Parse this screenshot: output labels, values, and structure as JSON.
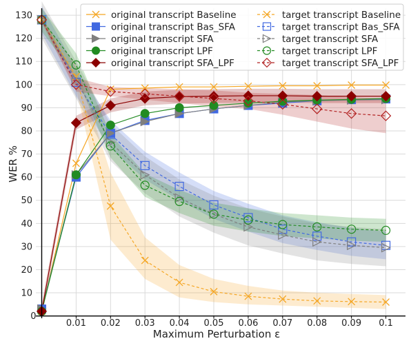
{
  "chart_data": {
    "type": "line",
    "title": "",
    "xlabel": "Maximum Perturbation ε",
    "ylabel": "WER %",
    "xlim": [
      -0.0017,
      0.1057
    ],
    "ylim": [
      -1,
      133
    ],
    "x_ticks": [
      0.01,
      0.02,
      0.03,
      0.04,
      0.05,
      0.06,
      0.07,
      0.08,
      0.09,
      0.1
    ],
    "x_tick_labels": [
      "0.01",
      "0.02",
      "0.03",
      "0.04",
      "0.05",
      "0.06",
      "0.07",
      "0.08",
      "0.09",
      "0.1"
    ],
    "x_origin_label": "0",
    "y_ticks": [
      0,
      10,
      20,
      30,
      40,
      50,
      60,
      70,
      80,
      90,
      100,
      110,
      120,
      130
    ],
    "y_tick_labels": [
      "0",
      "10",
      "20",
      "30",
      "40",
      "50",
      "60",
      "70",
      "80",
      "90",
      "100",
      "110",
      "120",
      "130"
    ],
    "grid": true,
    "legend_position": "top-right, two columns",
    "x": [
      0,
      0.01,
      0.02,
      0.03,
      0.04,
      0.05,
      0.06,
      0.07,
      0.08,
      0.09,
      0.1
    ],
    "series": [
      {
        "name": "original transcript Baseline",
        "color": "#f5a623",
        "marker": "x",
        "dashed": false,
        "values": [
          2,
          66,
          98,
          98.5,
          99,
          99,
          99.3,
          99.5,
          99.5,
          99.8,
          99.8
        ],
        "band": 0
      },
      {
        "name": "original transcript Bas_SFA",
        "color": "#4169e1",
        "marker": "square",
        "dashed": false,
        "values": [
          3,
          60,
          79,
          84.5,
          87.5,
          89.5,
          91,
          92,
          93,
          93.5,
          93.8
        ],
        "band": 0
      },
      {
        "name": "original transcript SFA",
        "color": "#7f7f7f",
        "marker": "triangle-right",
        "dashed": false,
        "values": [
          3,
          61,
          79,
          84,
          87.5,
          89.5,
          91,
          92.5,
          93,
          93.3,
          93.5
        ],
        "band": 0
      },
      {
        "name": "original transcript LPF",
        "color": "#228b22",
        "marker": "circle",
        "dashed": false,
        "values": [
          2,
          61,
          82.5,
          87.5,
          90,
          91,
          92,
          92.8,
          93.3,
          93.6,
          94
        ],
        "band": 0
      },
      {
        "name": "original transcript SFA_LPF",
        "color": "#8b0000",
        "marker": "diamond",
        "dashed": false,
        "values": [
          2,
          83.5,
          91,
          94,
          94.8,
          95,
          95.2,
          95.2,
          95,
          95,
          95
        ],
        "band": 3
      },
      {
        "name": "target transcript Baseline",
        "color": "#f5a623",
        "marker": "x",
        "dashed": true,
        "values": [
          128,
          103.5,
          47.5,
          24,
          14.5,
          10.5,
          8.5,
          7.3,
          6.5,
          6.2,
          6
        ],
        "band_upper": [
          129,
          108,
          62,
          34,
          22,
          16,
          13,
          11,
          10,
          9.5,
          9
        ],
        "band_lower": [
          127,
          98,
          33,
          16,
          8,
          6,
          5,
          4.5,
          4,
          3.5,
          3
        ]
      },
      {
        "name": "target transcript Bas_SFA",
        "color": "#4169e1",
        "marker": "square-open",
        "dashed": true,
        "values": [
          128,
          101,
          78.5,
          65,
          56,
          48,
          42.5,
          37.5,
          34.5,
          32,
          30.5
        ],
        "band": 6
      },
      {
        "name": "target transcript SFA",
        "color": "#7f7f7f",
        "marker": "triangle-right-open",
        "dashed": true,
        "values": [
          128,
          102,
          75,
          61,
          51,
          44,
          38.5,
          35,
          32,
          30.5,
          29.5
        ],
        "band": 8
      },
      {
        "name": "target transcript LPF",
        "color": "#228b22",
        "marker": "circle-open",
        "dashed": true,
        "values": [
          128,
          108.5,
          73.5,
          56.5,
          49.5,
          44,
          41.5,
          39.5,
          38.5,
          37.5,
          37
        ],
        "band": 5
      },
      {
        "name": "target transcript SFA_LPF",
        "color": "#b22222",
        "marker": "diamond-open",
        "dashed": true,
        "values": [
          128,
          100,
          97,
          96,
          95,
          94,
          93,
          91.5,
          89.5,
          87.5,
          86.5
        ],
        "band_upper": [
          129,
          103,
          99,
          98.5,
          98,
          97.5,
          96.5,
          96,
          95.5,
          94.5,
          94
        ],
        "band_lower": [
          127,
          97,
          95,
          93.5,
          92,
          90.5,
          89.5,
          87,
          84,
          81,
          79
        ]
      }
    ]
  }
}
